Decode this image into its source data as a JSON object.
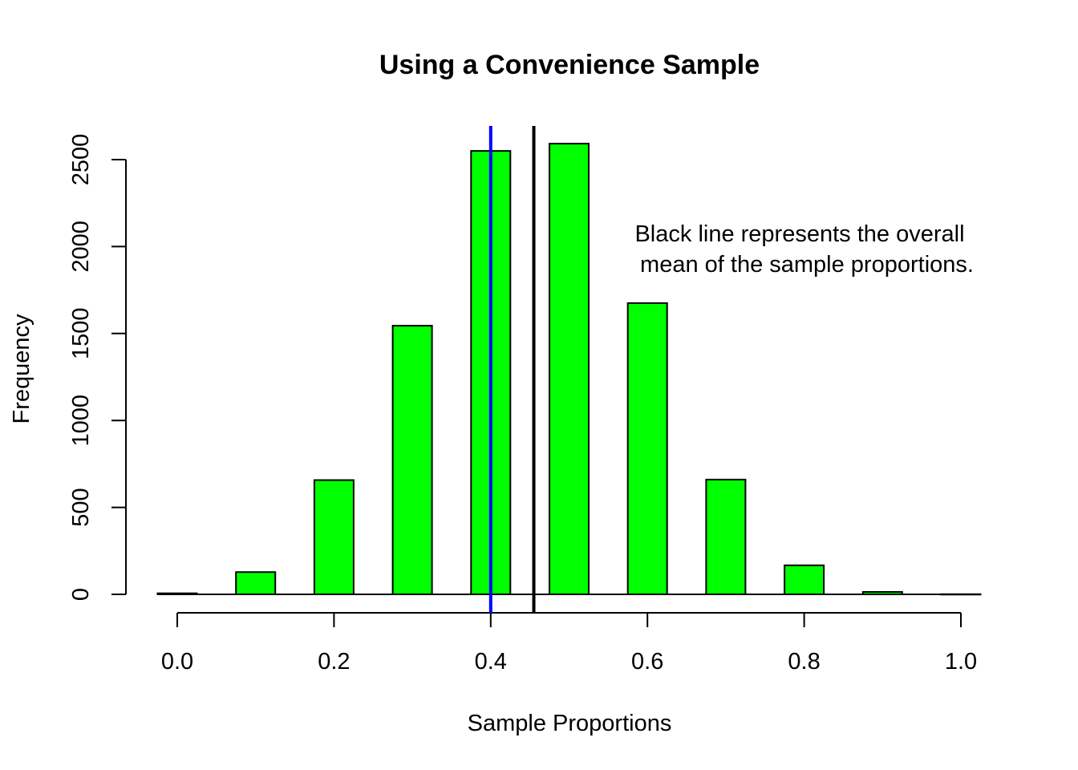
{
  "chart_data": {
    "type": "bar",
    "title": "Using a Convenience Sample",
    "xlabel": "Sample Proportions",
    "ylabel": "Frequency",
    "xlim": [
      0.0,
      1.0
    ],
    "ylim": [
      0,
      2500
    ],
    "x_ticks": [
      "0.0",
      "0.2",
      "0.4",
      "0.6",
      "0.8",
      "1.0"
    ],
    "y_ticks": [
      "0",
      "500",
      "1000",
      "1500",
      "2000",
      "2500"
    ],
    "categories": [
      0.0,
      0.1,
      0.2,
      0.3,
      0.4,
      0.5,
      0.6,
      0.7,
      0.8,
      0.9,
      1.0
    ],
    "values": [
      6,
      128,
      657,
      1545,
      2550,
      2592,
      1675,
      660,
      167,
      14,
      1
    ],
    "bar_color": "#00ff00",
    "reference_lines": [
      {
        "x": 0.4,
        "color": "#0000ff"
      },
      {
        "x": 0.455,
        "color": "#000000"
      }
    ],
    "annotation": [
      "Black line represents the overall",
      "mean of the sample proportions."
    ],
    "grid": false,
    "legend": "none"
  }
}
